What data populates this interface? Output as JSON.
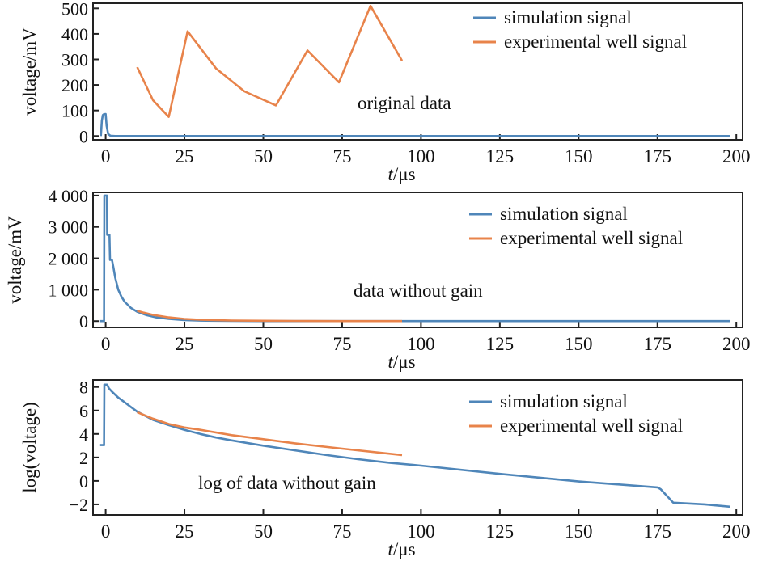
{
  "colors": {
    "simulation": "#4f86b9",
    "experimental": "#e8834a",
    "frame": "#222222"
  },
  "chart_data": [
    {
      "type": "line",
      "annotation": "original data",
      "xlabel_italic": "t",
      "xlabel_unit": "/μs",
      "ylabel": "voltage/mV",
      "xlim": [
        -4,
        202
      ],
      "ylim": [
        -15,
        520
      ],
      "xticks": [
        0,
        25,
        50,
        75,
        100,
        125,
        150,
        175,
        200
      ],
      "xtick_labels": [
        "0",
        "25",
        "50",
        "75",
        "100",
        "125",
        "150",
        "175",
        "200"
      ],
      "yticks": [
        0,
        100,
        200,
        300,
        400,
        500
      ],
      "ytick_labels": [
        "0",
        "100",
        "200",
        "300",
        "400",
        "500"
      ],
      "legend_position": "top-right",
      "series": [
        {
          "name": "simulation signal",
          "color_key": "simulation",
          "x": [
            -1.5,
            -1.2,
            -0.9,
            -0.6,
            -0.2,
            0,
            0.3,
            0.8,
            1.5,
            3,
            10,
            50,
            100,
            150,
            198
          ],
          "y": [
            0,
            60,
            82,
            85,
            86,
            86,
            40,
            8,
            1,
            0,
            0,
            0,
            0,
            0,
            0
          ]
        },
        {
          "name": "experimental well signal",
          "color_key": "experimental",
          "x": [
            10,
            15,
            20,
            26,
            35,
            44,
            54,
            64,
            74,
            84,
            94
          ],
          "y": [
            270,
            140,
            75,
            410,
            265,
            175,
            120,
            335,
            210,
            510,
            295
          ]
        }
      ]
    },
    {
      "type": "line",
      "annotation": "data without gain",
      "xlabel_italic": "t",
      "xlabel_unit": "/μs",
      "ylabel": "voltage/mV",
      "xlim": [
        -4,
        202
      ],
      "ylim": [
        -200,
        4100
      ],
      "xticks": [
        0,
        25,
        50,
        75,
        100,
        125,
        150,
        175,
        200
      ],
      "xtick_labels": [
        "0",
        "25",
        "50",
        "75",
        "100",
        "125",
        "150",
        "175",
        "200"
      ],
      "yticks": [
        0,
        1000,
        2000,
        3000,
        4000
      ],
      "ytick_labels": [
        "0",
        "1 000",
        "2 000",
        "3 000",
        "4 000"
      ],
      "legend_position": "top-right",
      "series": [
        {
          "name": "simulation signal",
          "color_key": "simulation",
          "x": [
            -2,
            -0.5,
            -0.4,
            0,
            0.4,
            0.5,
            1,
            1.2,
            1.4,
            2,
            2.5,
            3,
            3.5,
            4,
            5,
            6,
            7,
            8,
            10,
            13,
            16,
            20,
            25,
            30,
            40,
            50,
            75,
            100,
            150,
            198
          ],
          "y": [
            0,
            0,
            4000,
            4000,
            4000,
            2750,
            2750,
            2750,
            1950,
            1950,
            1700,
            1400,
            1200,
            1000,
            780,
            620,
            520,
            420,
            300,
            190,
            120,
            70,
            35,
            15,
            5,
            2,
            0,
            0,
            0,
            0
          ]
        },
        {
          "name": "experimental well signal",
          "color_key": "experimental",
          "x": [
            10,
            12,
            15,
            18,
            20,
            25,
            30,
            40,
            50,
            60,
            75,
            94
          ],
          "y": [
            330,
            270,
            200,
            150,
            120,
            70,
            45,
            20,
            10,
            5,
            2,
            0
          ]
        }
      ]
    },
    {
      "type": "line",
      "annotation": "log of data without gain",
      "xlabel_italic": "t",
      "xlabel_unit": "/μs",
      "ylabel": "log(voltage)",
      "xlim": [
        -4,
        202
      ],
      "ylim": [
        -2.9,
        8.6
      ],
      "xticks": [
        0,
        25,
        50,
        75,
        100,
        125,
        150,
        175,
        200
      ],
      "xtick_labels": [
        "0",
        "25",
        "50",
        "75",
        "100",
        "125",
        "150",
        "175",
        "200"
      ],
      "yticks": [
        -2,
        0,
        2,
        4,
        6,
        8
      ],
      "ytick_labels": [
        "−2",
        "0",
        "2",
        "4",
        "6",
        "8"
      ],
      "legend_position": "top-right",
      "series": [
        {
          "name": "simulation signal",
          "color_key": "simulation",
          "x": [
            -2,
            -0.5,
            -0.4,
            0.5,
            1,
            2,
            4,
            6,
            8,
            10,
            15,
            20,
            25,
            30,
            35,
            40,
            50,
            60,
            70,
            80,
            90,
            100,
            125,
            150,
            175,
            176,
            180,
            190,
            198
          ],
          "y": [
            3.05,
            3.05,
            8.2,
            8.2,
            7.9,
            7.6,
            7.1,
            6.7,
            6.3,
            5.9,
            5.2,
            4.75,
            4.35,
            4.0,
            3.7,
            3.45,
            3.0,
            2.6,
            2.2,
            1.85,
            1.55,
            1.3,
            0.6,
            -0.05,
            -0.55,
            -0.7,
            -1.85,
            -2.0,
            -2.2
          ]
        },
        {
          "name": "experimental well signal",
          "color_key": "experimental",
          "x": [
            10,
            15,
            20,
            25,
            30,
            40,
            50,
            60,
            75,
            94
          ],
          "y": [
            5.85,
            5.3,
            4.85,
            4.55,
            4.35,
            3.9,
            3.55,
            3.2,
            2.75,
            2.2
          ]
        }
      ]
    }
  ]
}
